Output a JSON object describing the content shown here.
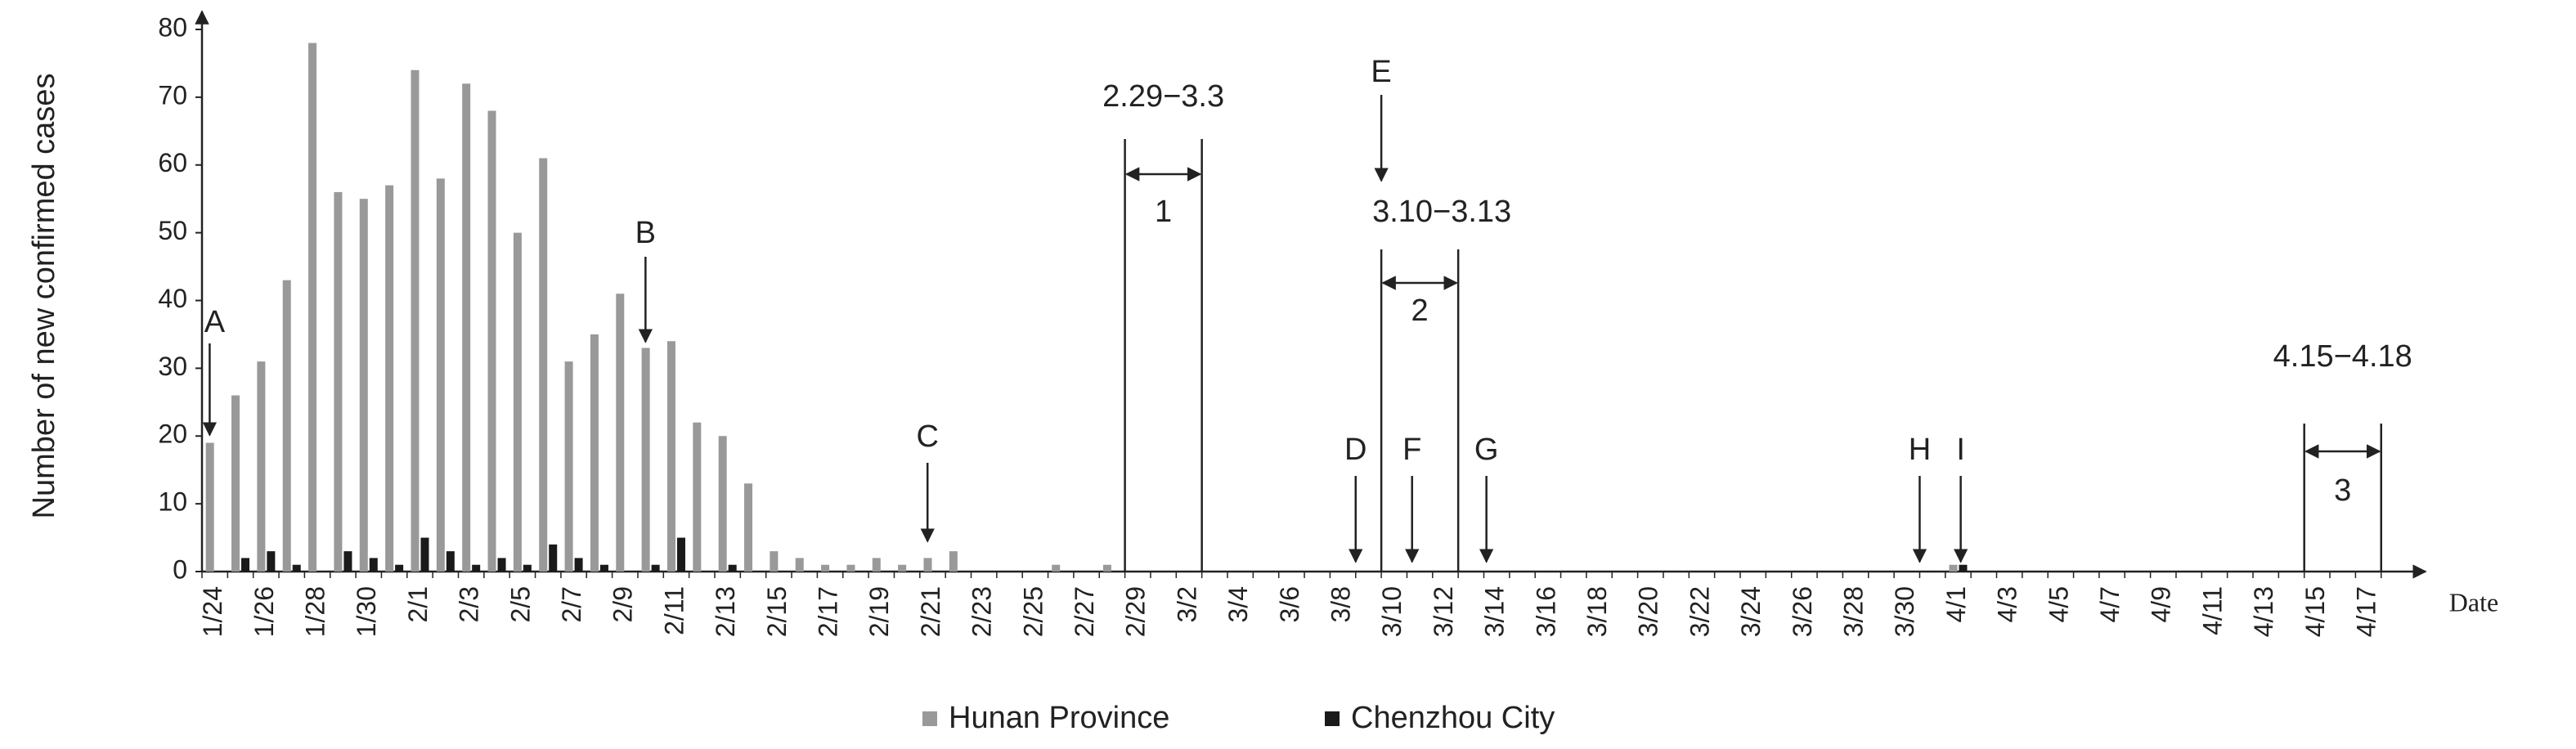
{
  "chart_data": {
    "type": "bar",
    "ylabel": "Number of new confirmed cases",
    "xlabel": "Date",
    "categories": [
      "1/24",
      null,
      "1/26",
      null,
      "1/28",
      null,
      "1/30",
      null,
      "2/1",
      null,
      "2/3",
      null,
      "2/5",
      null,
      "2/7",
      null,
      "2/9",
      null,
      "2/11",
      null,
      "2/13",
      null,
      "2/15",
      null,
      "2/17",
      null,
      "2/19",
      null,
      "2/21",
      null,
      "2/23",
      null,
      "2/25",
      null,
      "2/27",
      null,
      "2/29",
      null,
      "3/2",
      null,
      "3/4",
      null,
      "3/6",
      null,
      "3/8",
      null,
      "3/10",
      null,
      "3/12",
      null,
      "3/14",
      null,
      "3/16",
      null,
      "3/18",
      null,
      "3/20",
      null,
      "3/22",
      null,
      "3/24",
      null,
      "3/26",
      null,
      "3/28",
      null,
      "3/30",
      null,
      "4/1",
      null,
      "4/3",
      null,
      "4/5",
      null,
      "4/7",
      null,
      "4/9",
      null,
      "4/11",
      null,
      "4/13",
      null,
      "4/15",
      null,
      "4/17",
      null
    ],
    "series": [
      {
        "name": "Hunan Province",
        "color": "#999999",
        "values": [
          19,
          26,
          31,
          43,
          78,
          56,
          55,
          57,
          74,
          58,
          72,
          68,
          50,
          61,
          31,
          35,
          41,
          33,
          34,
          22,
          20,
          13,
          3,
          2,
          1,
          1,
          2,
          1,
          2,
          3,
          0,
          0,
          0,
          1,
          0,
          1,
          0,
          0,
          0,
          0,
          0,
          0,
          0,
          0,
          0,
          0,
          0,
          0,
          0,
          0,
          0,
          0,
          0,
          0,
          0,
          0,
          0,
          0,
          0,
          0,
          0,
          0,
          0,
          0,
          0,
          0,
          0,
          0,
          1,
          0,
          0,
          0,
          0,
          0,
          0,
          0,
          0,
          0,
          0,
          0,
          0,
          0,
          0,
          0,
          0,
          0
        ]
      },
      {
        "name": "Chenzhou City",
        "color": "#1a1a1a",
        "values": [
          0,
          2,
          3,
          1,
          0,
          3,
          2,
          1,
          5,
          3,
          1,
          2,
          1,
          4,
          2,
          1,
          0,
          1,
          5,
          0,
          1,
          0,
          0,
          0,
          0,
          0,
          0,
          0,
          0,
          0,
          0,
          0,
          0,
          0,
          0,
          0,
          0,
          0,
          0,
          0,
          0,
          0,
          0,
          0,
          0,
          0,
          0,
          0,
          0,
          0,
          0,
          0,
          0,
          0,
          0,
          0,
          0,
          0,
          0,
          0,
          0,
          0,
          0,
          0,
          0,
          0,
          0,
          0,
          1,
          0,
          0,
          0,
          0,
          0,
          0,
          0,
          0,
          0,
          0,
          0,
          0,
          0,
          0,
          0,
          0,
          0
        ]
      }
    ],
    "ylim": [
      0,
      80
    ],
    "yticks": [
      0,
      10,
      20,
      30,
      40,
      50,
      60,
      70,
      80
    ],
    "legend": "bottom",
    "annotations": [
      "A",
      "B",
      "C",
      "D",
      "E",
      "F",
      "G",
      "H",
      "I"
    ],
    "intervals": [
      {
        "label": "2.29−3.3",
        "number": "1"
      },
      {
        "label": "3.10−3.13",
        "number": "2"
      },
      {
        "label": "4.15−4.18",
        "number": "3"
      }
    ]
  }
}
